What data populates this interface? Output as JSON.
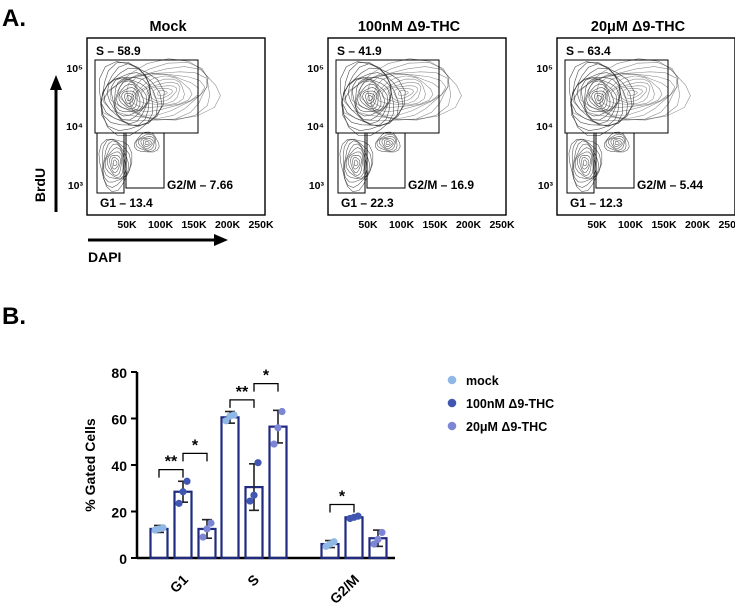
{
  "panel_a_label": "A.",
  "panel_b_label": "B.",
  "chart_data": [
    {
      "type": "scatter",
      "subtype": "flow cytometry contour plot",
      "panels": [
        {
          "title": "Mock",
          "gates": [
            {
              "name": "S",
              "label": "S – 58.9",
              "value": 58.9
            },
            {
              "name": "G1",
              "label": "G1 – 13.4",
              "value": 13.4
            },
            {
              "name": "G2/M",
              "label": "G2/M – 7.66",
              "value": 7.66
            }
          ]
        },
        {
          "title": "100nM Δ9-THC",
          "gates": [
            {
              "name": "S",
              "label": "S – 41.9",
              "value": 41.9
            },
            {
              "name": "G1",
              "label": "G1 – 22.3",
              "value": 22.3
            },
            {
              "name": "G2/M",
              "label": "G2/M – 16.9",
              "value": 16.9
            }
          ]
        },
        {
          "title": "20μM Δ9-THC",
          "gates": [
            {
              "name": "S",
              "label": "S – 63.4",
              "value": 63.4
            },
            {
              "name": "G1",
              "label": "G1 – 12.3",
              "value": 12.3
            },
            {
              "name": "G2/M",
              "label": "G2/M – 5.44",
              "value": 5.44
            }
          ]
        }
      ],
      "xlabel": "DAPI",
      "ylabel": "BrdU",
      "x_ticks": [
        "50K",
        "100K",
        "150K",
        "200K",
        "250K"
      ],
      "y_ticks": [
        "10⁵",
        "10⁴",
        "10³"
      ]
    },
    {
      "type": "bar",
      "categories": [
        "G1",
        "S",
        "G2/M"
      ],
      "ylabel": "% Gated Cells",
      "ylim": [
        0,
        80
      ],
      "y_ticks": [
        "0",
        "20",
        "40",
        "60",
        "80"
      ],
      "legend_position": "top-right",
      "series": [
        {
          "name": "mock",
          "color": "#8fb8e6",
          "values": [
            12.5,
            60.5,
            6
          ],
          "errors": [
            1.5,
            2.5,
            1.5
          ],
          "points": [
            [
              12.0,
              12.5,
              13.0
            ],
            [
              59.0,
              61.0,
              61.5
            ],
            [
              5.0,
              6.0,
              7.0
            ]
          ]
        },
        {
          "name": "100nM Δ9-THC",
          "color": "#4056b0",
          "values": [
            28.5,
            30.5,
            17.5
          ],
          "errors": [
            4.5,
            10.0,
            0.5
          ],
          "points": [
            [
              23.5,
              28.5,
              33.0
            ],
            [
              24.5,
              27.0,
              41.0
            ],
            [
              17.0,
              17.5,
              18.0
            ]
          ]
        },
        {
          "name": "20μM Δ9-THC",
          "color": "#7d86d4",
          "values": [
            12.5,
            56.5,
            8.5
          ],
          "errors": [
            4.0,
            7.0,
            3.5
          ],
          "points": [
            [
              9.0,
              12.5,
              15.0
            ],
            [
              49.0,
              56.0,
              63.0
            ],
            [
              6.0,
              8.0,
              11.0
            ]
          ]
        }
      ],
      "significance": [
        {
          "category": "G1",
          "between": [
            "mock",
            "100nM Δ9-THC"
          ],
          "label": "**"
        },
        {
          "category": "G1",
          "between": [
            "100nM Δ9-THC",
            "20μM Δ9-THC"
          ],
          "label": "*"
        },
        {
          "category": "S",
          "between": [
            "mock",
            "100nM Δ9-THC"
          ],
          "label": "**"
        },
        {
          "category": "S",
          "between": [
            "100nM Δ9-THC",
            "20μM Δ9-THC"
          ],
          "label": "*"
        },
        {
          "category": "G2/M",
          "between": [
            "mock",
            "100nM Δ9-THC"
          ],
          "label": "*"
        }
      ]
    }
  ]
}
